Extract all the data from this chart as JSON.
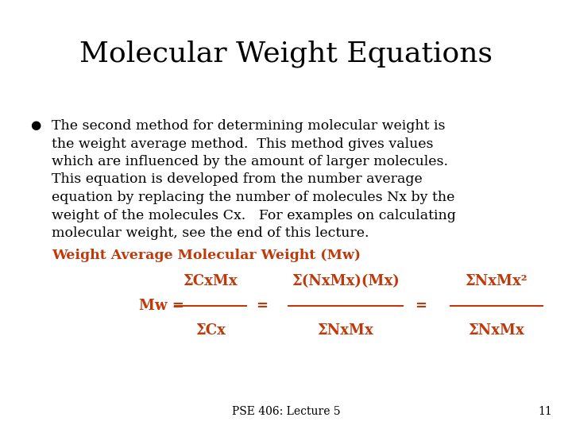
{
  "title": "Molecular Weight Equations",
  "title_fontsize": 26,
  "title_color": "#000000",
  "title_font": "serif",
  "separator_color": "#6B6B00",
  "bullet_color": "#000000",
  "bullet_font": "serif",
  "bullet_fontsize": 12.5,
  "subtitle_text": "Weight Average Molecular Weight (Mw)",
  "subtitle_fontsize": 12.5,
  "subtitle_color": "#C0390A",
  "equation_color": "#C0390A",
  "equation_fontsize": 13,
  "footer_text": "PSE 406: Lecture 5",
  "footer_page": "11",
  "footer_fontsize": 10,
  "footer_color": "#000000",
  "background_color": "#FFFFFF"
}
